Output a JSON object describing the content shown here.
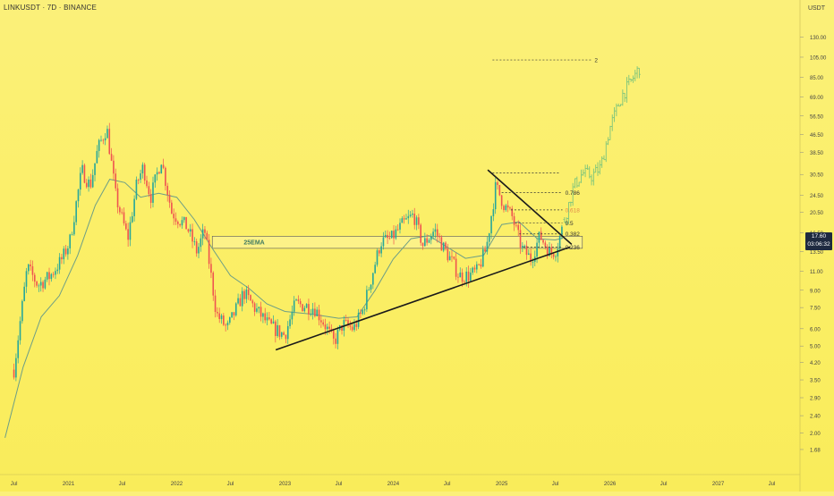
{
  "header": {
    "symbol_title": "LINKUSDT · 7D · BINANCE",
    "unit": "USDT"
  },
  "price_tag": {
    "price": "17.60",
    "countdown": "03:06:32"
  },
  "colors": {
    "candle_up": "#26a69a",
    "candle_down": "#ef5350",
    "projection": "#7cc47c",
    "ema": "#6d9e86",
    "trendline": "#1a1a1a",
    "fib_dash": "#333333",
    "fib_618": "#e08a4a",
    "zone_fill": "rgba(255,255,255,0.22)",
    "axis_text": "#444444"
  },
  "chart_data": {
    "type": "candlestick",
    "title": "LINKUSDT · 7D · BINANCE",
    "scale": "log",
    "ylim": [
      1.5,
      165
    ],
    "y_ticks": [
      1.68,
      2.0,
      2.4,
      2.9,
      3.5,
      4.2,
      5.0,
      6.0,
      7.5,
      9.0,
      11.0,
      13.5,
      16.5,
      20.5,
      24.5,
      30.5,
      38.5,
      46.5,
      56.5,
      69.0,
      85.0,
      105.0,
      130.0
    ],
    "y_tick_labels": [
      "1.68",
      "2.00",
      "2.40",
      "2.90",
      "3.50",
      "4.20",
      "5.00",
      "6.00",
      "7.50",
      "9.00",
      "11.00",
      "13.50",
      "16.50",
      "20.50",
      "24.50",
      "30.50",
      "38.50",
      "46.50",
      "56.50",
      "69.00",
      "85.00",
      "105.00",
      "130.00"
    ],
    "x_ticks": [
      "2020-07-01",
      "2021-01-01",
      "2021-07-01",
      "2022-01-01",
      "2022-07-01",
      "2023-01-01",
      "2023-07-01",
      "2024-01-01",
      "2024-07-01",
      "2025-01-01",
      "2025-07-01",
      "2026-01-01",
      "2026-07-01",
      "2027-01-01",
      "2027-07-01"
    ],
    "x_tick_labels": [
      "Jul",
      "2021",
      "Jul",
      "2022",
      "Jul",
      "2023",
      "Jul",
      "2024",
      "Jul",
      "2025",
      "Jul",
      "2026",
      "Jul",
      "2027",
      "Jul"
    ],
    "xlim": [
      "2020-05-15",
      "2027-10-01"
    ],
    "price_path": [
      [
        "2020-07-01",
        3.9
      ],
      [
        "2020-08-15",
        11.5
      ],
      [
        "2020-09-20",
        9.5
      ],
      [
        "2020-11-01",
        10.5
      ],
      [
        "2020-12-10",
        12.5
      ],
      [
        "2021-01-05",
        15.0
      ],
      [
        "2021-02-15",
        32.0
      ],
      [
        "2021-03-15",
        27.0
      ],
      [
        "2021-04-10",
        40.0
      ],
      [
        "2021-05-10",
        50.0
      ],
      [
        "2021-06-10",
        24.0
      ],
      [
        "2021-07-20",
        15.5
      ],
      [
        "2021-08-20",
        28.0
      ],
      [
        "2021-09-10",
        33.0
      ],
      [
        "2021-10-05",
        24.0
      ],
      [
        "2021-11-10",
        36.0
      ],
      [
        "2021-12-15",
        20.5
      ],
      [
        "2022-02-05",
        17.5
      ],
      [
        "2022-03-10",
        13.5
      ],
      [
        "2022-04-05",
        17.0
      ],
      [
        "2022-05-15",
        7.0
      ],
      [
        "2022-06-20",
        6.0
      ],
      [
        "2022-08-15",
        8.8
      ],
      [
        "2022-09-20",
        7.5
      ],
      [
        "2022-11-10",
        6.2
      ],
      [
        "2022-12-31",
        5.6
      ],
      [
        "2023-02-05",
        7.8
      ],
      [
        "2023-04-10",
        7.5
      ],
      [
        "2023-05-15",
        6.3
      ],
      [
        "2023-06-15",
        5.2
      ],
      [
        "2023-07-15",
        6.3
      ],
      [
        "2023-08-20",
        6.0
      ],
      [
        "2023-09-20",
        7.2
      ],
      [
        "2023-10-25",
        11.0
      ],
      [
        "2023-11-20",
        15.0
      ],
      [
        "2023-12-25",
        15.5
      ],
      [
        "2024-02-01",
        18.0
      ],
      [
        "2024-03-10",
        20.0
      ],
      [
        "2024-04-10",
        14.5
      ],
      [
        "2024-05-20",
        17.0
      ],
      [
        "2024-06-20",
        14.0
      ],
      [
        "2024-07-20",
        12.0
      ],
      [
        "2024-08-10",
        10.5
      ],
      [
        "2024-09-10",
        10.5
      ],
      [
        "2024-10-10",
        11.0
      ],
      [
        "2024-11-10",
        14.0
      ],
      [
        "2024-12-12",
        27.0
      ],
      [
        "2025-01-10",
        22.0
      ],
      [
        "2025-02-05",
        19.5
      ],
      [
        "2025-03-10",
        14.0
      ],
      [
        "2025-04-10",
        12.5
      ],
      [
        "2025-05-10",
        16.0
      ],
      [
        "2025-06-15",
        13.2
      ],
      [
        "2025-07-05",
        14.0
      ],
      [
        "2025-07-26",
        17.6
      ]
    ],
    "projection_path": [
      [
        "2025-08-01",
        19.0
      ],
      [
        "2025-09-01",
        27.0
      ],
      [
        "2025-10-01",
        31.0
      ],
      [
        "2025-11-01",
        30.0
      ],
      [
        "2025-12-01",
        33.0
      ],
      [
        "2026-01-01",
        50.0
      ],
      [
        "2026-02-10",
        70.0
      ],
      [
        "2026-03-10",
        80.0
      ],
      [
        "2026-04-10",
        94.0
      ]
    ],
    "ema_label": "25EMA",
    "ema_path": [
      [
        "2020-06-01",
        1.9
      ],
      [
        "2020-08-01",
        4.0
      ],
      [
        "2020-10-01",
        6.8
      ],
      [
        "2020-12-01",
        8.5
      ],
      [
        "2021-02-01",
        13.0
      ],
      [
        "2021-04-01",
        22.0
      ],
      [
        "2021-05-20",
        29.0
      ],
      [
        "2021-07-10",
        28.0
      ],
      [
        "2021-09-01",
        24.0
      ],
      [
        "2021-11-01",
        25.0
      ],
      [
        "2022-01-01",
        24.0
      ],
      [
        "2022-03-01",
        19.0
      ],
      [
        "2022-05-01",
        14.0
      ],
      [
        "2022-07-01",
        10.5
      ],
      [
        "2022-09-01",
        9.2
      ],
      [
        "2022-11-01",
        7.8
      ],
      [
        "2023-01-01",
        7.2
      ],
      [
        "2023-04-01",
        7.0
      ],
      [
        "2023-07-01",
        6.7
      ],
      [
        "2023-09-01",
        6.8
      ],
      [
        "2023-11-01",
        9.0
      ],
      [
        "2024-01-01",
        12.5
      ],
      [
        "2024-03-01",
        15.5
      ],
      [
        "2024-05-01",
        16.0
      ],
      [
        "2024-07-01",
        14.2
      ],
      [
        "2024-09-01",
        12.6
      ],
      [
        "2024-11-01",
        13.0
      ],
      [
        "2025-01-01",
        18.0
      ],
      [
        "2025-03-01",
        18.5
      ],
      [
        "2025-05-01",
        15.5
      ],
      [
        "2025-07-01",
        15.3
      ],
      [
        "2025-07-26",
        15.6
      ]
    ],
    "trendlines": [
      {
        "name": "ascending-support",
        "from": [
          "2022-12-01",
          4.8
        ],
        "to": [
          "2025-08-20",
          14.2
        ]
      },
      {
        "name": "descending-resistance",
        "from": [
          "2024-11-15",
          32.0
        ],
        "to": [
          "2025-08-25",
          14.6
        ]
      }
    ],
    "support_zone": {
      "x_from": [
        "2022-05-01",
        "2025-09-30"
      ],
      "y_from": 14.0,
      "y_to": 15.9
    },
    "fib_levels": [
      {
        "label": "2",
        "value": 102.0,
        "x_from": "2024-12-01",
        "x_to": "2025-11-01"
      },
      {
        "label": "",
        "value": 31.0,
        "x_from": "2024-12-01",
        "x_to": "2025-07-15"
      },
      {
        "label": "0.786",
        "value": 25.2,
        "x_from": "2025-01-01",
        "x_to": "2025-07-25"
      },
      {
        "label": "0.618",
        "value": 21.0,
        "x_from": "2025-02-01",
        "x_to": "2025-07-25"
      },
      {
        "label": "0.5",
        "value": 18.3,
        "x_from": "2025-02-15",
        "x_to": "2025-07-25"
      },
      {
        "label": "0.382",
        "value": 16.3,
        "x_from": "2025-03-01",
        "x_to": "2025-07-25"
      },
      {
        "label": "0.236",
        "value": 14.2,
        "x_from": "2025-03-15",
        "x_to": "2025-07-25"
      }
    ]
  }
}
